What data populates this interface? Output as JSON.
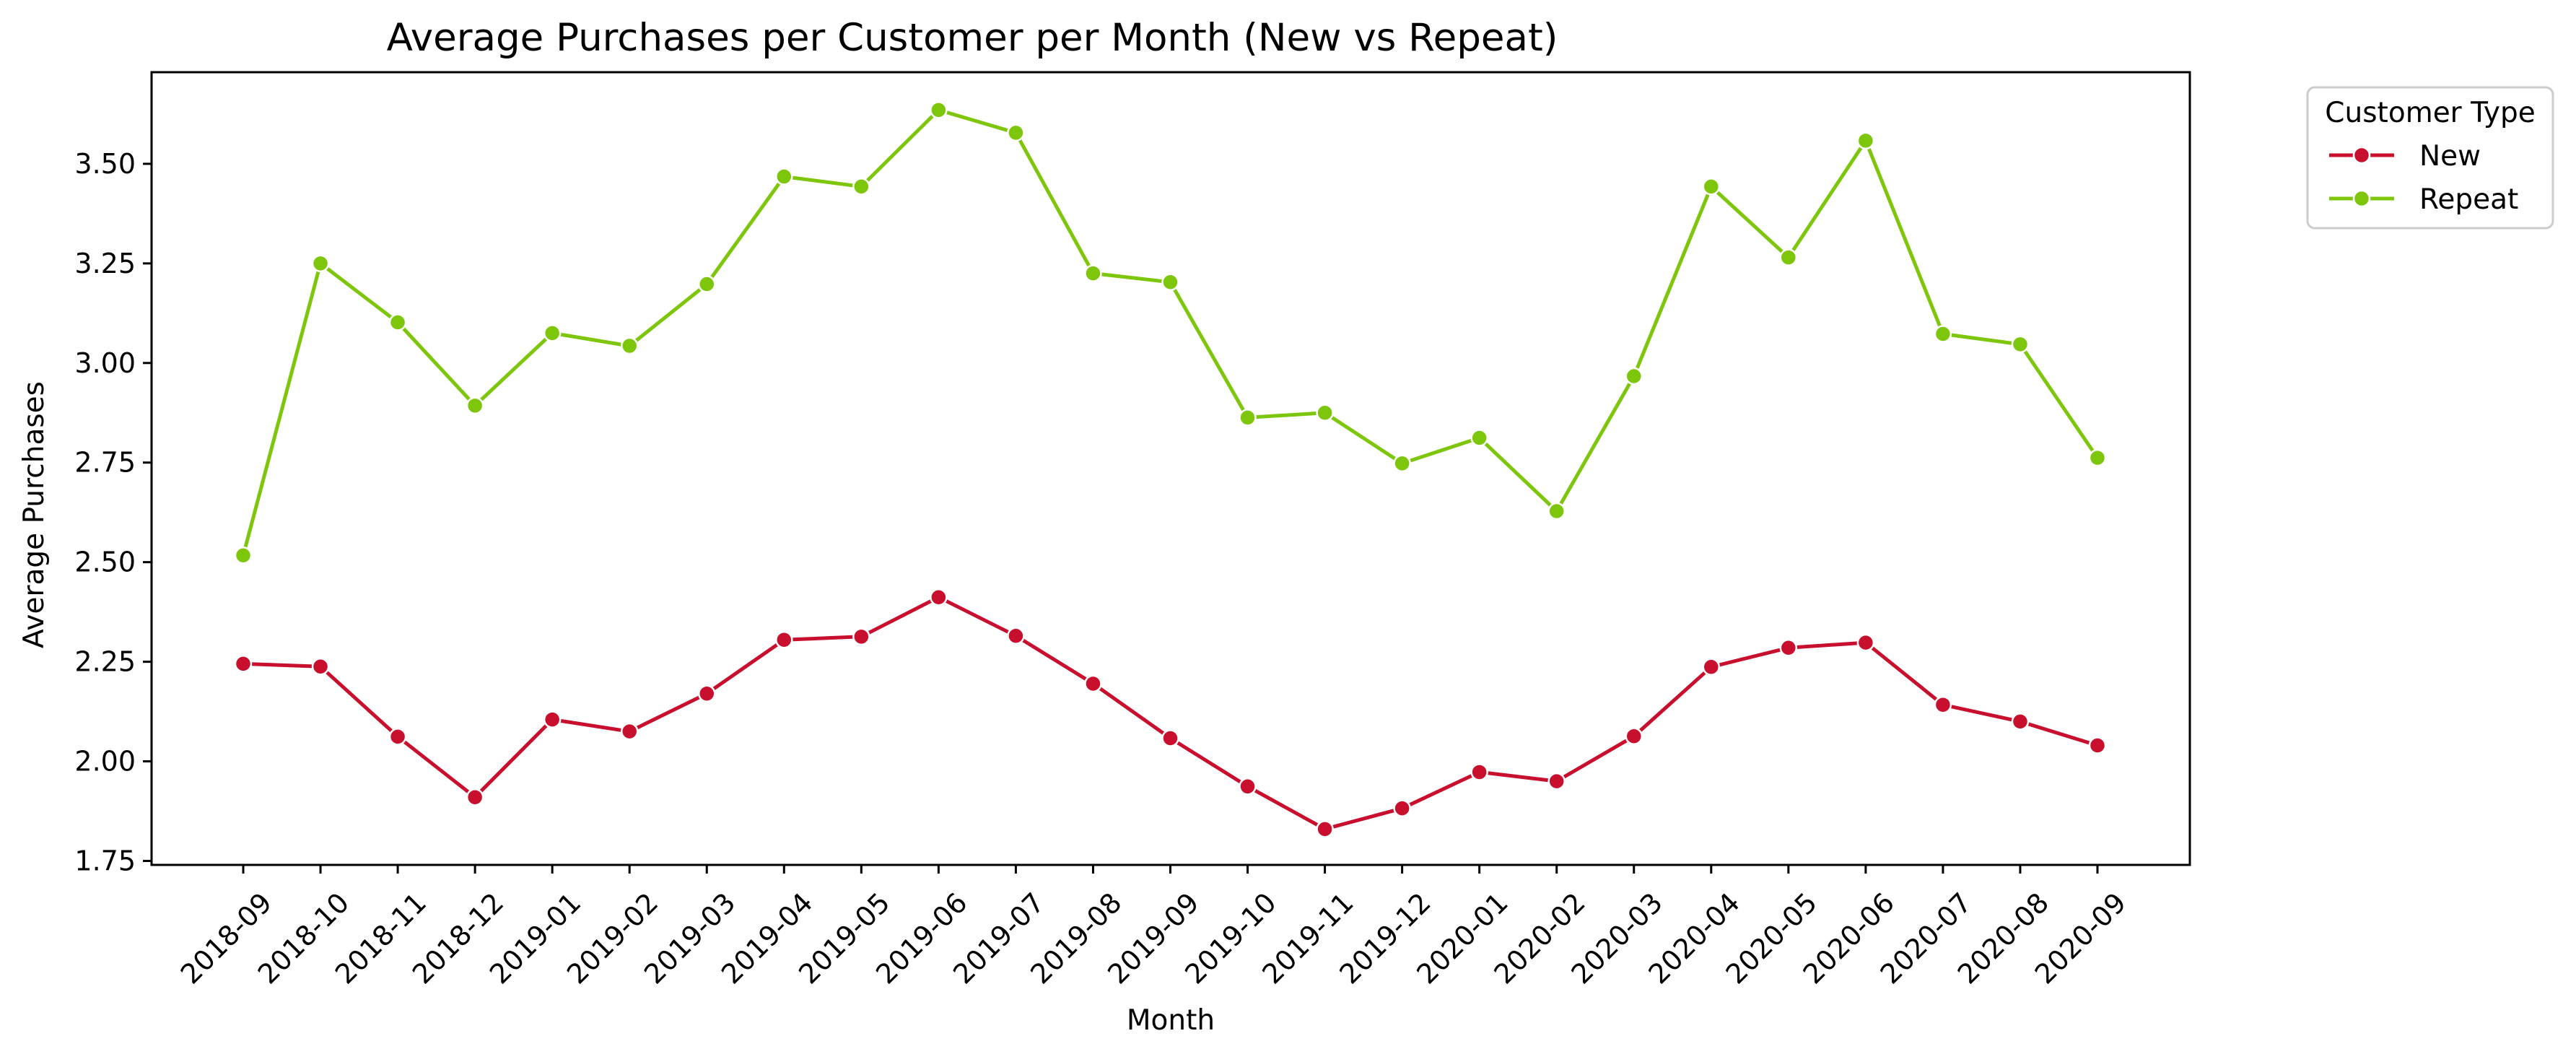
{
  "chart_data": {
    "type": "line",
    "title": "Average Purchases per Customer per Month (New vs Repeat)",
    "xlabel": "Month",
    "ylabel": "Average Purchases",
    "categories": [
      "2018-09",
      "2018-10",
      "2018-11",
      "2018-12",
      "2019-01",
      "2019-02",
      "2019-03",
      "2019-04",
      "2019-05",
      "2019-06",
      "2019-07",
      "2019-08",
      "2019-09",
      "2019-10",
      "2019-11",
      "2019-12",
      "2020-01",
      "2020-02",
      "2020-03",
      "2020-04",
      "2020-05",
      "2020-06",
      "2020-07",
      "2020-08",
      "2020-09"
    ],
    "ylim": [
      1.74,
      3.73
    ],
    "yticks": [
      1.75,
      2.0,
      2.25,
      2.5,
      2.75,
      3.0,
      3.25,
      3.5
    ],
    "ytick_labels": [
      "1.75",
      "2.00",
      "2.25",
      "2.50",
      "2.75",
      "3.00",
      "3.25",
      "3.50"
    ],
    "grid": false,
    "legend": {
      "title": "Customer Type",
      "placement": "outside-top-right"
    },
    "series": [
      {
        "name": "New",
        "color": "#c8102e",
        "marker": "circle",
        "values": [
          2.245,
          2.238,
          2.062,
          1.91,
          2.105,
          2.075,
          2.17,
          2.305,
          2.313,
          2.412,
          2.315,
          2.195,
          2.058,
          1.937,
          1.83,
          1.882,
          1.973,
          1.95,
          2.063,
          2.237,
          2.285,
          2.298,
          2.142,
          2.1,
          2.04
        ]
      },
      {
        "name": "Repeat",
        "color": "#7ec60c",
        "marker": "circle",
        "values": [
          2.517,
          3.25,
          3.102,
          2.893,
          3.075,
          3.043,
          3.198,
          3.468,
          3.443,
          3.635,
          3.578,
          3.225,
          3.203,
          2.863,
          2.875,
          2.748,
          2.812,
          2.628,
          2.967,
          3.443,
          3.265,
          3.558,
          3.073,
          3.047,
          2.762
        ]
      }
    ]
  }
}
